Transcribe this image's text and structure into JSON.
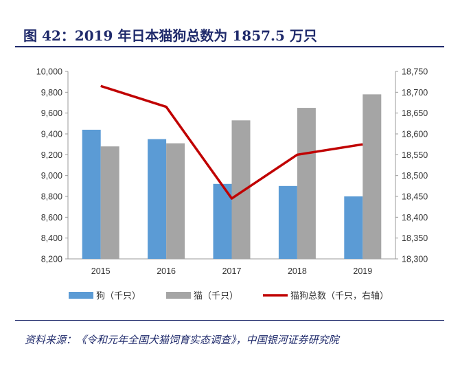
{
  "title": "图 42：2019 年日本猫狗总数为 1857.5 万只",
  "source": "资料来源：《令和元年全国犬猫饲育实态调查》，中国银河证券研究院",
  "colors": {
    "title": "#1f2a6b",
    "dog": "#5b9bd5",
    "cat": "#a5a5a5",
    "total": "#c00000"
  },
  "chart_data": {
    "type": "bar",
    "categories": [
      "2015",
      "2016",
      "2017",
      "2018",
      "2019"
    ],
    "y_left": {
      "ylim": [
        8200,
        10000
      ],
      "ticks": [
        "8,200",
        "8,400",
        "8,600",
        "8,800",
        "9,000",
        "9,200",
        "9,400",
        "9,600",
        "9,800",
        "10,000"
      ]
    },
    "y_right": {
      "ylim": [
        18300,
        18750
      ],
      "ticks": [
        "18,300",
        "18,350",
        "18,400",
        "18,450",
        "18,500",
        "18,550",
        "18,600",
        "18,650",
        "18,700",
        "18,750"
      ]
    },
    "series": [
      {
        "name": "狗（千只）",
        "type": "bar",
        "axis": "left",
        "values": [
          9440,
          9350,
          8920,
          8900,
          8800
        ]
      },
      {
        "name": "猫（千只）",
        "type": "bar",
        "axis": "left",
        "values": [
          9280,
          9310,
          9530,
          9650,
          9780
        ]
      },
      {
        "name": "猫狗总数（千只，右轴）",
        "type": "line",
        "axis": "right",
        "values": [
          18715,
          18665,
          18445,
          18550,
          18575
        ]
      }
    ],
    "legend_position": "bottom",
    "grid": false
  }
}
